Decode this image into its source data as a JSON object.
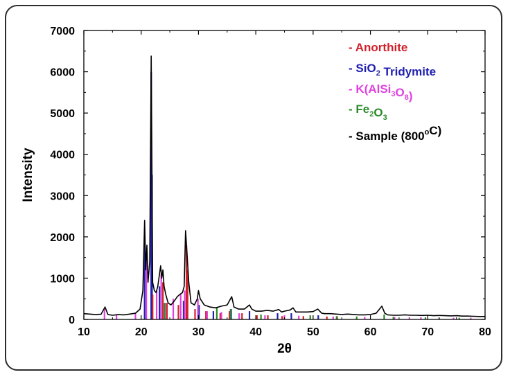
{
  "chart_data": {
    "type": "line",
    "xlabel": "2θ",
    "ylabel": "Intensity",
    "xlim": [
      10,
      80
    ],
    "ylim": [
      0,
      7000
    ],
    "xticks": [
      "10",
      "20",
      "30",
      "40",
      "50",
      "60",
      "70",
      "80"
    ],
    "yticks": [
      "0",
      "1000",
      "2000",
      "3000",
      "4000",
      "5000",
      "6000",
      "7000"
    ],
    "grid": false,
    "legend_position": "top-right",
    "colors": {
      "anorthite": "#d0202a",
      "tridymite": "#1f1fb0",
      "orthoclase": "#e040e0",
      "hematite": "#2a8a2a",
      "sample": "#000000"
    },
    "legend": [
      {
        "dash": "-",
        "parts": [
          {
            "t": "Anorthite"
          }
        ],
        "color": "#d0202a"
      },
      {
        "dash": "-",
        "parts": [
          {
            "t": "SiO"
          },
          {
            "t": "2",
            "sub": true
          },
          {
            "t": " Tridymite"
          }
        ],
        "color": "#1f1fb0"
      },
      {
        "dash": "-",
        "parts": [
          {
            "t": "K(AlSi"
          },
          {
            "t": "3",
            "sub": true
          },
          {
            "t": "O"
          },
          {
            "t": "8",
            "sub": true
          },
          {
            "t": ")"
          }
        ],
        "color": "#e040e0"
      },
      {
        "dash": "-",
        "parts": [
          {
            "t": "Fe"
          },
          {
            "t": "2",
            "sub": true
          },
          {
            "t": "O"
          },
          {
            "t": "3",
            "sub": true
          }
        ],
        "color": "#2a8a2a"
      },
      {
        "dash": "-",
        "parts": [
          {
            "t": "Sample (800"
          },
          {
            "t": "o",
            "sup": true
          },
          {
            "t": "C)"
          }
        ],
        "color": "#000000"
      }
    ],
    "series": [
      {
        "name": "Sample (800°C)",
        "values": [
          [
            10,
            140
          ],
          [
            11,
            130
          ],
          [
            12,
            120
          ],
          [
            13,
            125
          ],
          [
            13.7,
            300
          ],
          [
            14.2,
            120
          ],
          [
            15,
            100
          ],
          [
            16,
            115
          ],
          [
            17,
            110
          ],
          [
            18,
            130
          ],
          [
            19,
            150
          ],
          [
            19.8,
            250
          ],
          [
            20.3,
            700
          ],
          [
            20.6,
            2400
          ],
          [
            20.8,
            1200
          ],
          [
            21.0,
            1800
          ],
          [
            21.2,
            900
          ],
          [
            21.5,
            1400
          ],
          [
            21.75,
            6380
          ],
          [
            22.0,
            900
          ],
          [
            22.3,
            700
          ],
          [
            22.6,
            650
          ],
          [
            22.9,
            800
          ],
          [
            23.2,
            1100
          ],
          [
            23.4,
            1300
          ],
          [
            23.6,
            1000
          ],
          [
            23.8,
            1200
          ],
          [
            24.0,
            800
          ],
          [
            24.3,
            600
          ],
          [
            24.7,
            400
          ],
          [
            25.2,
            350
          ],
          [
            25.8,
            450
          ],
          [
            26.3,
            550
          ],
          [
            26.7,
            600
          ],
          [
            27.2,
            650
          ],
          [
            27.5,
            800
          ],
          [
            27.75,
            2150
          ],
          [
            28.0,
            1600
          ],
          [
            28.3,
            900
          ],
          [
            28.7,
            400
          ],
          [
            29.3,
            350
          ],
          [
            29.8,
            500
          ],
          [
            30.0,
            700
          ],
          [
            30.3,
            500
          ],
          [
            31,
            350
          ],
          [
            32,
            300
          ],
          [
            33,
            280
          ],
          [
            34,
            320
          ],
          [
            35,
            350
          ],
          [
            35.8,
            550
          ],
          [
            36.2,
            300
          ],
          [
            37,
            250
          ],
          [
            38,
            250
          ],
          [
            38.9,
            350
          ],
          [
            39.3,
            250
          ],
          [
            40,
            200
          ],
          [
            41,
            200
          ],
          [
            42,
            220
          ],
          [
            43,
            200
          ],
          [
            44,
            240
          ],
          [
            44.5,
            180
          ],
          [
            45,
            200
          ],
          [
            46,
            230
          ],
          [
            46.5,
            280
          ],
          [
            47,
            180
          ],
          [
            48,
            180
          ],
          [
            49,
            180
          ],
          [
            50,
            190
          ],
          [
            50.8,
            250
          ],
          [
            51.5,
            150
          ],
          [
            52,
            140
          ],
          [
            53,
            140
          ],
          [
            54,
            130
          ],
          [
            55,
            120
          ],
          [
            56,
            130
          ],
          [
            57,
            120
          ],
          [
            58,
            110
          ],
          [
            59,
            110
          ],
          [
            60,
            120
          ],
          [
            61,
            150
          ],
          [
            62,
            320
          ],
          [
            62.5,
            150
          ],
          [
            63,
            110
          ],
          [
            64,
            100
          ],
          [
            65,
            100
          ],
          [
            66,
            110
          ],
          [
            67,
            100
          ],
          [
            68,
            100
          ],
          [
            69,
            95
          ],
          [
            70,
            100
          ],
          [
            71,
            90
          ],
          [
            72,
            95
          ],
          [
            73,
            90
          ],
          [
            74,
            85
          ],
          [
            75,
            90
          ],
          [
            76,
            80
          ],
          [
            77,
            80
          ],
          [
            78,
            75
          ],
          [
            79,
            70
          ],
          [
            80,
            70
          ]
        ]
      },
      {
        "name": "SiO2 Tridymite",
        "values": [
          [
            20.6,
            2000
          ],
          [
            21.75,
            6000
          ],
          [
            21.9,
            3500
          ],
          [
            23.2,
            800
          ],
          [
            27.4,
            450
          ],
          [
            30.1,
            350
          ],
          [
            32.6,
            200
          ],
          [
            35.7,
            250
          ],
          [
            38.9,
            200
          ],
          [
            43.8,
            150
          ],
          [
            46.2,
            150
          ],
          [
            50.9,
            100
          ]
        ]
      },
      {
        "name": "Anorthite",
        "values": [
          [
            22.0,
            600
          ],
          [
            23.8,
            900
          ],
          [
            24.5,
            400
          ],
          [
            26.5,
            350
          ],
          [
            27.9,
            1800
          ],
          [
            28.1,
            1200
          ],
          [
            29.4,
            250
          ],
          [
            31.3,
            200
          ],
          [
            33.8,
            150
          ],
          [
            35.4,
            200
          ],
          [
            37.6,
            150
          ],
          [
            40.2,
            100
          ],
          [
            42.1,
            100
          ],
          [
            44.6,
            80
          ],
          [
            48.3,
            80
          ],
          [
            52.4,
            70
          ],
          [
            54.2,
            70
          ]
        ]
      },
      {
        "name": "K(AlSi3O8)",
        "values": [
          [
            13.6,
            250
          ],
          [
            15.7,
            120
          ],
          [
            19.0,
            150
          ],
          [
            20.9,
            1400
          ],
          [
            22.7,
            700
          ],
          [
            23.5,
            1100
          ],
          [
            24.2,
            400
          ],
          [
            25.6,
            500
          ],
          [
            26.9,
            600
          ],
          [
            27.6,
            700
          ],
          [
            29.9,
            500
          ],
          [
            31.5,
            200
          ],
          [
            34.0,
            180
          ],
          [
            37.1,
            150
          ],
          [
            41.6,
            100
          ],
          [
            45.0,
            100
          ],
          [
            47.5,
            90
          ],
          [
            53.5,
            70
          ],
          [
            59.0,
            60
          ],
          [
            64.2,
            60
          ],
          [
            66.8,
            50
          ],
          [
            68.8,
            50
          ],
          [
            72.0,
            50
          ],
          [
            74.5,
            40
          ],
          [
            77.5,
            40
          ]
        ]
      },
      {
        "name": "Fe2O3",
        "values": [
          [
            24.1,
            400
          ],
          [
            33.2,
            300
          ],
          [
            35.6,
            250
          ],
          [
            40.9,
            120
          ],
          [
            49.5,
            100
          ],
          [
            54.1,
            80
          ],
          [
            57.6,
            70
          ],
          [
            62.4,
            120
          ],
          [
            64.0,
            60
          ],
          [
            69.6,
            50
          ],
          [
            72.0,
            40
          ],
          [
            75.5,
            40
          ]
        ]
      }
    ]
  }
}
